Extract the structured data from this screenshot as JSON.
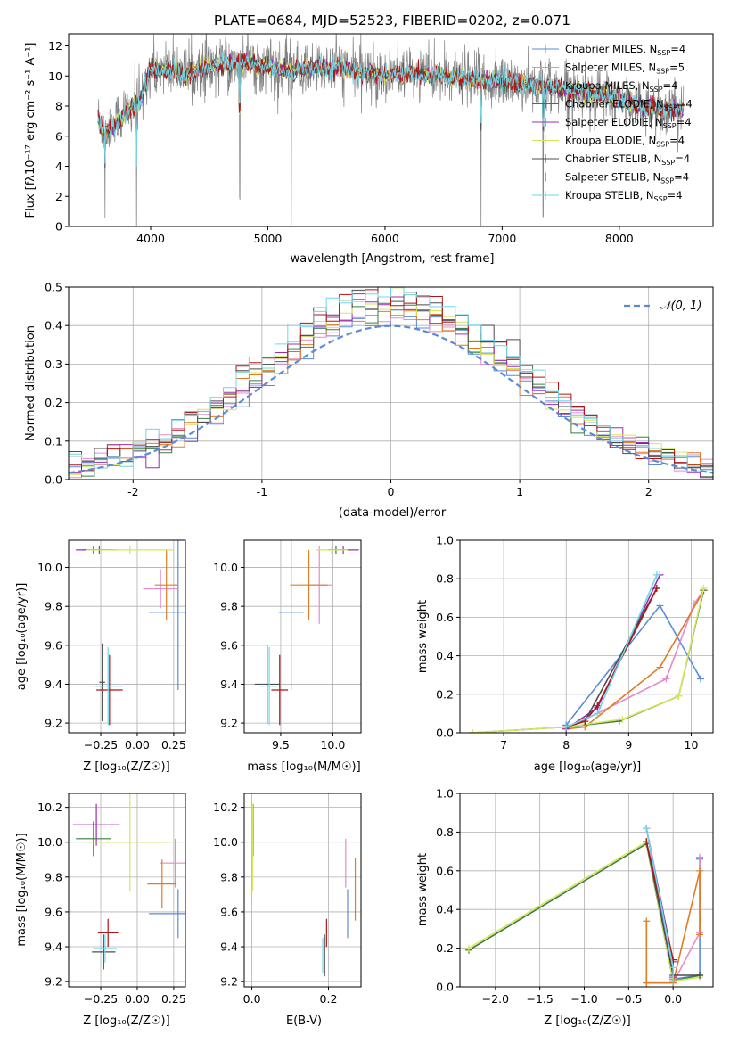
{
  "title": "PLATE=0684, MJD=52523, FIBERID=0202, z=0.071",
  "colors": {
    "Chabrier MILES": "#5b8bd8",
    "Salpeter MILES": "#e88ac9",
    "Kroupa MILES": "#e07c24",
    "Chabrier ELODIE": "#3a7d44",
    "Salpeter ELODIE": "#9b2fb3",
    "Kroupa ELODIE": "#d6e65a",
    "Chabrier STELIB": "#4d4d4d",
    "Salpeter STELIB": "#b01414",
    "Kroupa STELIB": "#6fd6e8",
    "data": "#808080",
    "normal": "#5b8bd8"
  },
  "legend_spectrum": [
    {
      "name": "Chabrier MILES",
      "base": "Chabrier MILES, N",
      "sub": "SSP",
      "tail": "=4"
    },
    {
      "name": "Salpeter MILES",
      "base": "Salpeter MILES, N",
      "sub": "SSP",
      "tail": "=5"
    },
    {
      "name": "Kroupa MILES",
      "base": "Kroupa MILES, N",
      "sub": "SSP",
      "tail": "=4"
    },
    {
      "name": "Chabrier ELODIE",
      "base": "Chabrier ELODIE, N",
      "sub": "SSP",
      "tail": "=4"
    },
    {
      "name": "Salpeter ELODIE",
      "base": "Salpeter ELODIE, N",
      "sub": "SSP",
      "tail": "=4"
    },
    {
      "name": "Kroupa ELODIE",
      "base": "Kroupa ELODIE, N",
      "sub": "SSP",
      "tail": "=4"
    },
    {
      "name": "Chabrier STELIB",
      "base": "Chabrier STELIB, N",
      "sub": "SSP",
      "tail": "=4"
    },
    {
      "name": "Salpeter STELIB",
      "base": "Salpeter STELIB, N",
      "sub": "SSP",
      "tail": "=4"
    },
    {
      "name": "Kroupa STELIB",
      "base": "Kroupa STELIB, N",
      "sub": "SSP",
      "tail": "=4"
    }
  ],
  "legend_resid": {
    "label": "𝒩(0, 1)"
  },
  "chart_data": [
    {
      "id": "spectrum",
      "type": "line",
      "xlabel": "wavelength [Angstrom, rest frame]",
      "ylabel": "Flux [fλ10⁻¹⁷ erg cm⁻² s⁻¹ A⁻¹]",
      "xlim": [
        3300,
        8800
      ],
      "ylim": [
        0,
        12.8
      ],
      "xticks": [
        4000,
        5000,
        6000,
        7000,
        8000
      ],
      "yticks": [
        0,
        2,
        4,
        6,
        8,
        10,
        12
      ],
      "continuum_x": [
        3550,
        3600,
        3700,
        3800,
        3900,
        4000,
        4100,
        4200,
        4300,
        4400,
        4600,
        4800,
        5000,
        5200,
        5400,
        5600,
        5800,
        6000,
        6200,
        6400,
        6600,
        6800,
        7000,
        7200,
        7400,
        7600,
        7800,
        8000,
        8200,
        8400,
        8600
      ],
      "continuum_y": [
        7.0,
        6.3,
        6.8,
        7.6,
        8.2,
        10.5,
        10.4,
        10.3,
        10.0,
        10.4,
        10.8,
        10.9,
        10.6,
        10.3,
        10.5,
        10.6,
        10.2,
        10.1,
        10.2,
        10.0,
        9.9,
        9.7,
        9.6,
        9.5,
        9.3,
        9.0,
        8.8,
        8.4,
        8.0,
        7.8,
        7.8
      ],
      "data_noise": 0.9,
      "dips": [
        {
          "x": 3610,
          "depth": 7
        },
        {
          "x": 3880,
          "depth": 9
        },
        {
          "x": 4760,
          "depth": 10
        },
        {
          "x": 5200,
          "depth": 10
        },
        {
          "x": 6820,
          "depth": 10
        },
        {
          "x": 7350,
          "depth": 9
        }
      ]
    },
    {
      "id": "residuals",
      "type": "histogram",
      "xlabel": "(data-model)/error",
      "ylabel": "Normed distribution",
      "xlim": [
        -2.5,
        2.5
      ],
      "ylim": [
        0,
        0.5
      ],
      "xticks": [
        -2,
        -1,
        0,
        1,
        2
      ],
      "yticks": [
        0.0,
        0.1,
        0.2,
        0.3,
        0.4,
        0.5
      ],
      "bin_width": 0.1,
      "overlay": "normal pdf N(0,1)"
    },
    {
      "id": "age-vs-Z",
      "type": "errorbar",
      "xlabel": "Z [log₁₀(Z/Z☉)]",
      "ylabel": "age  [log₁₀(age/yr)]",
      "xlim": [
        -0.47,
        0.33
      ],
      "ylim": [
        9.15,
        10.14
      ],
      "xticks": [
        -0.25,
        0.0,
        0.25
      ],
      "xticklabels": [
        "−0.25",
        "0.00",
        "0.25"
      ],
      "yticks": [
        9.2,
        9.4,
        9.6,
        9.8,
        10.0
      ],
      "points": [
        {
          "series": "Chabrier MILES",
          "x": 0.28,
          "xerr": 0.2,
          "y": 9.77,
          "yerr": 0.4
        },
        {
          "series": "Salpeter MILES",
          "x": 0.16,
          "xerr": 0.12,
          "y": 9.89,
          "yerr": 0.1
        },
        {
          "series": "Kroupa MILES",
          "x": 0.2,
          "xerr": 0.08,
          "y": 9.91,
          "yerr": 0.18
        },
        {
          "series": "Chabrier ELODIE",
          "x": -0.26,
          "xerr": 0.12,
          "y": 10.09,
          "yerr": 0.02
        },
        {
          "series": "Salpeter ELODIE",
          "x": -0.3,
          "xerr": 0.12,
          "y": 10.09,
          "yerr": 0.02
        },
        {
          "series": "Kroupa ELODIE",
          "x": -0.05,
          "xerr": 0.3,
          "y": 10.09,
          "yerr": 0.02
        },
        {
          "series": "Chabrier STELIB",
          "x": -0.24,
          "xerr": 0.02,
          "y": 9.41,
          "yerr": 0.2
        },
        {
          "series": "Salpeter STELIB",
          "x": -0.19,
          "xerr": 0.09,
          "y": 9.37,
          "yerr": 0.18
        },
        {
          "series": "Kroupa STELIB",
          "x": -0.2,
          "xerr": 0.1,
          "y": 9.39,
          "yerr": 0.2
        }
      ]
    },
    {
      "id": "age-vs-mass",
      "type": "errorbar",
      "xlabel": "mass [log₁₀(M/M☉)]",
      "ylabel": "",
      "xlim": [
        9.15,
        10.27
      ],
      "ylim": [
        9.15,
        10.14
      ],
      "xticks": [
        9.5,
        10.0
      ],
      "xticklabels": [
        "9.5",
        "10.0"
      ],
      "yticks": [
        9.2,
        9.4,
        9.6,
        9.8,
        10.0
      ],
      "points": [
        {
          "series": "Chabrier MILES",
          "x": 9.6,
          "xerr": 0.12,
          "y": 9.77,
          "yerr": 0.4
        },
        {
          "series": "Salpeter MILES",
          "x": 9.87,
          "xerr": 0.12,
          "y": 9.91,
          "yerr": 0.2
        },
        {
          "series": "Kroupa MILES",
          "x": 9.77,
          "xerr": 0.18,
          "y": 9.91,
          "yerr": 0.18
        },
        {
          "series": "Chabrier ELODIE",
          "x": 10.03,
          "xerr": 0.08,
          "y": 10.09,
          "yerr": 0.02
        },
        {
          "series": "Salpeter ELODIE",
          "x": 10.1,
          "xerr": 0.15,
          "y": 10.09,
          "yerr": 0.02
        },
        {
          "series": "Kroupa ELODIE",
          "x": 9.99,
          "xerr": 0.15,
          "y": 10.09,
          "yerr": 0.02
        },
        {
          "series": "Chabrier STELIB",
          "x": 9.37,
          "xerr": 0.12,
          "y": 9.4,
          "yerr": 0.2
        },
        {
          "series": "Salpeter STELIB",
          "x": 9.49,
          "xerr": 0.08,
          "y": 9.37,
          "yerr": 0.18
        },
        {
          "series": "Kroupa STELIB",
          "x": 9.39,
          "xerr": 0.09,
          "y": 9.39,
          "yerr": 0.2
        }
      ]
    },
    {
      "id": "weight-vs-age",
      "type": "line",
      "xlabel": "age  [log₁₀(age/yr)]",
      "ylabel": "mass weight",
      "xlim": [
        6.3,
        10.35
      ],
      "ylim": [
        0,
        1.0
      ],
      "xticks": [
        7,
        8,
        9,
        10
      ],
      "yticks": [
        0.0,
        0.2,
        0.4,
        0.6,
        0.8,
        1.0
      ],
      "series": [
        {
          "name": "Chabrier MILES",
          "x": [
            8.0,
            9.5,
            10.15
          ],
          "y": [
            0.04,
            0.66,
            0.28
          ]
        },
        {
          "name": "Salpeter MILES",
          "x": [
            8.0,
            9.6,
            10.05,
            10.2
          ],
          "y": [
            0.02,
            0.28,
            0.67,
            0.74
          ]
        },
        {
          "name": "Kroupa MILES",
          "x": [
            8.0,
            8.3,
            9.5,
            10.2
          ],
          "y": [
            0.02,
            0.03,
            0.34,
            0.74
          ]
        },
        {
          "name": "Chabrier ELODIE",
          "x": [
            6.5,
            8.0,
            8.85,
            9.8,
            10.2
          ],
          "y": [
            0.0,
            0.03,
            0.06,
            0.19,
            0.74
          ]
        },
        {
          "name": "Salpeter ELODIE",
          "x": [
            8.0,
            8.5,
            9.5
          ],
          "y": [
            0.02,
            0.13,
            0.82
          ]
        },
        {
          "name": "Kroupa ELODIE",
          "x": [
            6.5,
            8.0,
            8.9,
            9.8,
            10.2
          ],
          "y": [
            0.0,
            0.03,
            0.07,
            0.19,
            0.75
          ]
        },
        {
          "name": "Chabrier STELIB",
          "x": [
            8.0,
            8.3,
            9.45
          ],
          "y": [
            0.03,
            0.06,
            0.75
          ]
        },
        {
          "name": "Salpeter STELIB",
          "x": [
            8.0,
            8.3,
            8.5,
            9.45
          ],
          "y": [
            0.03,
            0.06,
            0.14,
            0.75
          ]
        },
        {
          "name": "Kroupa STELIB",
          "x": [
            8.0,
            8.5,
            9.45
          ],
          "y": [
            0.03,
            0.1,
            0.82
          ]
        }
      ]
    },
    {
      "id": "mass-vs-Z",
      "type": "errorbar",
      "xlabel": "Z [log₁₀(Z/Z☉)]",
      "ylabel": "mass [log₁₀(M/M☉)]",
      "xlim": [
        -0.47,
        0.33
      ],
      "ylim": [
        9.17,
        10.28
      ],
      "xticks": [
        -0.25,
        0.0,
        0.25
      ],
      "xticklabels": [
        "−0.25",
        "0.00",
        "0.25"
      ],
      "yticks": [
        9.2,
        9.4,
        9.6,
        9.8,
        10.0,
        10.2
      ],
      "points": [
        {
          "series": "Chabrier MILES",
          "x": 0.28,
          "xerr": 0.2,
          "y": 9.59,
          "yerr": 0.14
        },
        {
          "series": "Salpeter MILES",
          "x": 0.26,
          "xerr": 0.1,
          "y": 9.88,
          "yerr": 0.14
        },
        {
          "series": "Kroupa MILES",
          "x": 0.17,
          "xerr": 0.1,
          "y": 9.76,
          "yerr": 0.14
        },
        {
          "series": "Chabrier ELODIE",
          "x": -0.3,
          "xerr": 0.12,
          "y": 10.02,
          "yerr": 0.1
        },
        {
          "series": "Salpeter ELODIE",
          "x": -0.28,
          "xerr": 0.16,
          "y": 10.1,
          "yerr": 0.12
        },
        {
          "series": "Kroupa ELODIE",
          "x": -0.05,
          "xerr": 0.28,
          "y": 10.0,
          "yerr": 0.28
        },
        {
          "series": "Chabrier STELIB",
          "x": -0.23,
          "xerr": 0.08,
          "y": 9.37,
          "yerr": 0.1
        },
        {
          "series": "Salpeter STELIB",
          "x": -0.2,
          "xerr": 0.07,
          "y": 9.48,
          "yerr": 0.08
        },
        {
          "series": "Kroupa STELIB",
          "x": -0.22,
          "xerr": 0.08,
          "y": 9.39,
          "yerr": 0.08
        }
      ]
    },
    {
      "id": "mass-vs-EBV",
      "type": "errorbar",
      "xlabel": "E(B-V)",
      "ylabel": "",
      "xlim": [
        -0.02,
        0.285
      ],
      "ylim": [
        9.17,
        10.28
      ],
      "xticks": [
        0.0,
        0.2
      ],
      "xticklabels": [
        "0.0",
        "0.2"
      ],
      "yticks": [
        9.2,
        9.4,
        9.6,
        9.8,
        10.0,
        10.2
      ],
      "points": [
        {
          "series": "Chabrier MILES",
          "x": 0.25,
          "xerr": 0,
          "y": 9.59,
          "yerr": 0.14
        },
        {
          "series": "Salpeter MILES",
          "x": 0.245,
          "xerr": 0,
          "y": 9.88,
          "yerr": 0.14
        },
        {
          "series": "Kroupa MILES",
          "x": 0.27,
          "xerr": 0,
          "y": 9.73,
          "yerr": 0.18
        },
        {
          "series": "Chabrier ELODIE",
          "x": 0.003,
          "xerr": 0,
          "y": 10.02,
          "yerr": 0.1
        },
        {
          "series": "Salpeter ELODIE",
          "x": 0.003,
          "xerr": 0,
          "y": 10.1,
          "yerr": 0.12
        },
        {
          "series": "Kroupa ELODIE",
          "x": 0.002,
          "xerr": 0,
          "y": 9.97,
          "yerr": 0.25
        },
        {
          "series": "Chabrier STELIB",
          "x": 0.19,
          "xerr": 0,
          "y": 9.35,
          "yerr": 0.12
        },
        {
          "series": "Salpeter STELIB",
          "x": 0.195,
          "xerr": 0,
          "y": 9.48,
          "yerr": 0.08
        },
        {
          "series": "Kroupa STELIB",
          "x": 0.185,
          "xerr": 0,
          "y": 9.35,
          "yerr": 0.1
        }
      ]
    },
    {
      "id": "weight-vs-Z",
      "type": "line",
      "xlabel": "Z [log₁₀(Z/Z☉)]",
      "ylabel": "mass weight",
      "xlim": [
        -2.4,
        0.45
      ],
      "ylim": [
        0,
        1.0
      ],
      "xticks": [
        -2.0,
        -1.5,
        -1.0,
        -0.5,
        0.0
      ],
      "xticklabels": [
        "−2.0",
        "−1.5",
        "−1.0",
        "−0.5",
        "0.0"
      ],
      "yticks": [
        0.0,
        0.2,
        0.4,
        0.6,
        0.8,
        1.0
      ],
      "series": [
        {
          "name": "Chabrier MILES",
          "x": [
            -0.3,
            0.0,
            0.3,
            0.3
          ],
          "y": [
            0.82,
            0.04,
            0.06,
            0.66
          ]
        },
        {
          "name": "Salpeter MILES",
          "x": [
            -0.3,
            0.0,
            0.3,
            0.3
          ],
          "y": [
            0.02,
            0.02,
            0.28,
            0.67
          ]
        },
        {
          "name": "Kroupa MILES",
          "x": [
            -0.3,
            -0.3,
            0.0,
            0.3,
            0.3
          ],
          "y": [
            0.34,
            0.02,
            0.02,
            0.6,
            0.27
          ]
        },
        {
          "name": "Chabrier ELODIE",
          "x": [
            -2.3,
            -0.3,
            0.0,
            0.3
          ],
          "y": [
            0.19,
            0.74,
            0.03,
            0.06
          ]
        },
        {
          "name": "Salpeter ELODIE",
          "x": [
            -0.3,
            0.0,
            0.0
          ],
          "y": [
            0.82,
            0.13,
            0.05
          ]
        },
        {
          "name": "Kroupa ELODIE",
          "x": [
            -2.3,
            -0.3,
            0.0,
            0.3
          ],
          "y": [
            0.2,
            0.75,
            0.03,
            0.05
          ]
        },
        {
          "name": "Chabrier STELIB",
          "x": [
            -0.3,
            0.0,
            0.3
          ],
          "y": [
            0.75,
            0.06,
            0.06
          ]
        },
        {
          "name": "Salpeter STELIB",
          "x": [
            -0.3,
            0.0,
            0.0
          ],
          "y": [
            0.75,
            0.14,
            0.03
          ]
        },
        {
          "name": "Kroupa STELIB",
          "x": [
            -0.3,
            0.0,
            0.0
          ],
          "y": [
            0.82,
            0.1,
            0.03
          ]
        }
      ]
    }
  ]
}
